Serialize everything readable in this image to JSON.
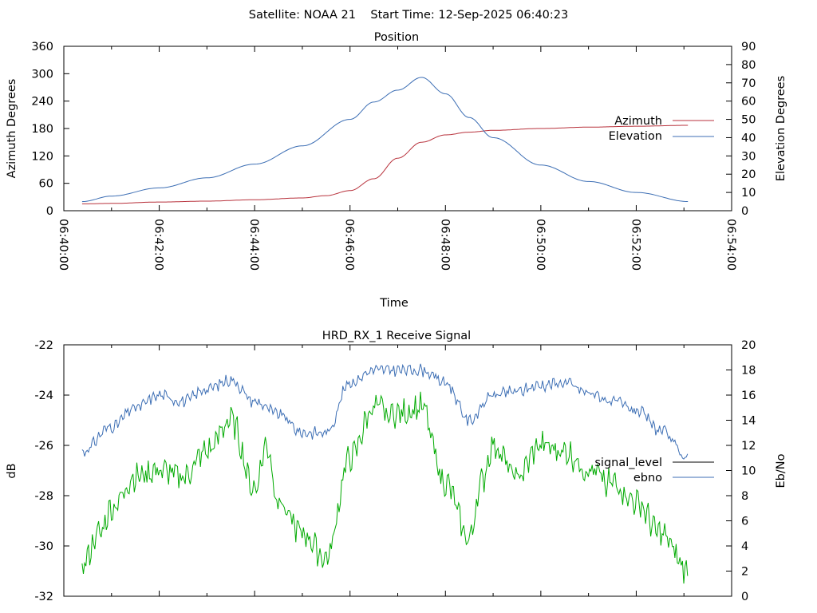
{
  "header": {
    "title": "Satellite: NOAA 21    Start Time: 12-Sep-2025 06:40:23"
  },
  "chart_data": [
    {
      "type": "line",
      "title": "Position",
      "xlabel": "Time",
      "ylabel": "Azimuth Degrees",
      "y2label": "Elevation Degrees",
      "x_ticks": [
        "06:40:00",
        "06:42:00",
        "06:44:00",
        "06:46:00",
        "06:48:00",
        "06:50:00",
        "06:52:00",
        "06:54:00"
      ],
      "xlim_seconds_after_0640": [
        0,
        840
      ],
      "ylim": [
        0,
        360
      ],
      "y_ticks": [
        "0",
        "60",
        "120",
        "180",
        "240",
        "300",
        "360"
      ],
      "y2lim": [
        0,
        90
      ],
      "y2_ticks": [
        "0",
        "10",
        "20",
        "30",
        "40",
        "50",
        "60",
        "70",
        "80",
        "90"
      ],
      "grid": false,
      "legend_placement": "right",
      "series": [
        {
          "name": "Azimuth",
          "axis": "y",
          "color": "#b8323c",
          "x": [
            "06:40:23",
            "06:41:00",
            "06:42:00",
            "06:43:00",
            "06:44:00",
            "06:45:00",
            "06:45:30",
            "06:46:00",
            "06:46:30",
            "06:47:00",
            "06:47:30",
            "06:48:00",
            "06:48:30",
            "06:49:00",
            "06:50:00",
            "06:51:00",
            "06:52:00",
            "06:53:06"
          ],
          "values": [
            15,
            16,
            19,
            21,
            24,
            28,
            33,
            44,
            70,
            115,
            150,
            166,
            172,
            176,
            180,
            183,
            185,
            187
          ]
        },
        {
          "name": "Elevation",
          "axis": "y2",
          "color": "#3c6eb4",
          "x": [
            "06:40:23",
            "06:41:00",
            "06:42:00",
            "06:43:00",
            "06:44:00",
            "06:45:00",
            "06:46:00",
            "06:46:30",
            "06:47:00",
            "06:47:30",
            "06:48:00",
            "06:48:30",
            "06:49:00",
            "06:50:00",
            "06:51:00",
            "06:52:00",
            "06:53:06"
          ],
          "values": [
            5,
            8,
            12.5,
            18,
            25.5,
            35.5,
            50,
            59.5,
            66,
            73,
            64,
            51,
            40,
            25,
            16,
            10,
            5
          ]
        }
      ]
    },
    {
      "type": "line",
      "title": "HRD_RX_1 Receive Signal",
      "xlabel": "",
      "ylabel": "dB",
      "y2label": "Eb/No",
      "xlim_seconds_after_0640": [
        0,
        840
      ],
      "ylim": [
        -32,
        -22
      ],
      "y_ticks": [
        "-22",
        "-24",
        "-26",
        "-28",
        "-30",
        "-32"
      ],
      "y2lim": [
        0,
        20
      ],
      "y2_ticks": [
        "0",
        "2",
        "4",
        "6",
        "8",
        "10",
        "12",
        "14",
        "16",
        "18",
        "20"
      ],
      "grid": false,
      "legend_placement": "right",
      "series": [
        {
          "name": "signal_level",
          "axis": "y",
          "color": "#000000",
          "x": [],
          "values": []
        },
        {
          "name": "ebno",
          "axis": "y2",
          "color": "#3c6eb4",
          "x": [
            "06:40:23",
            "06:41:00",
            "06:41:30",
            "06:42:00",
            "06:42:30",
            "06:43:00",
            "06:43:30",
            "06:44:00",
            "06:44:30",
            "06:45:00",
            "06:45:30",
            "06:46:00",
            "06:46:30",
            "06:47:00",
            "06:47:30",
            "06:48:00",
            "06:48:30",
            "06:49:00",
            "06:49:30",
            "06:50:00",
            "06:50:30",
            "06:51:00",
            "06:51:30",
            "06:52:00",
            "06:52:30",
            "06:53:06"
          ],
          "values": [
            11.5,
            13.5,
            15,
            16,
            15.5,
            16.5,
            17.2,
            15.5,
            14.5,
            13,
            13,
            17,
            18,
            18,
            18,
            17,
            14,
            16,
            16.3,
            16.8,
            17,
            16.2,
            15.5,
            14.8,
            13.2,
            11
          ]
        },
        {
          "name": "",
          "axis": "y2",
          "color": "#00aa00",
          "x": [
            "06:40:23",
            "06:40:45",
            "06:41:00",
            "06:41:30",
            "06:42:00",
            "06:42:30",
            "06:43:00",
            "06:43:30",
            "06:44:00",
            "06:44:15",
            "06:44:30",
            "06:45:00",
            "06:45:30",
            "06:46:00",
            "06:46:30",
            "06:47:00",
            "06:47:30",
            "06:48:00",
            "06:48:30",
            "06:48:45",
            "06:49:00",
            "06:49:30",
            "06:50:00",
            "06:50:30",
            "06:51:00",
            "06:51:30",
            "06:52:00",
            "06:52:30",
            "06:53:06"
          ],
          "values": [
            2.5,
            5,
            7,
            9.5,
            10,
            9.5,
            11.5,
            14,
            8.5,
            12,
            7.5,
            5,
            3,
            11,
            15,
            14.5,
            15,
            9,
            4.5,
            9,
            12,
            9.5,
            12,
            11.5,
            10,
            9,
            7.5,
            5,
            2
          ]
        }
      ]
    }
  ]
}
